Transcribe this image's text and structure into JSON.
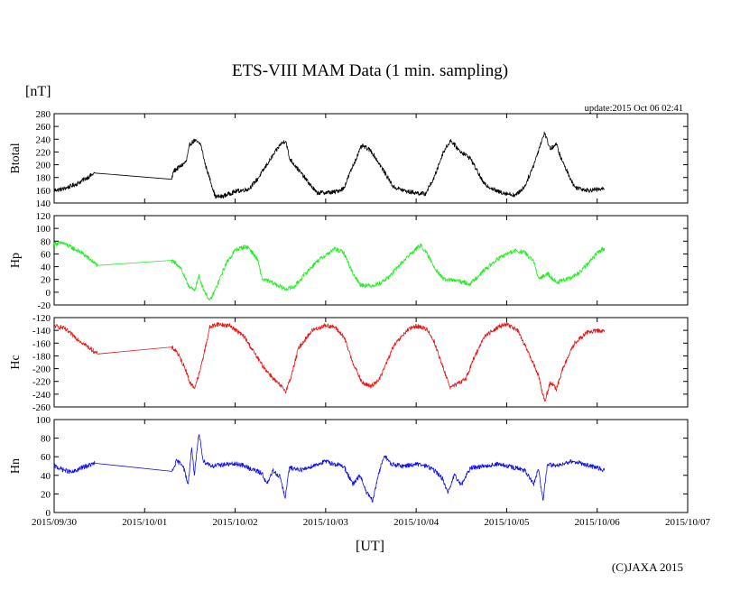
{
  "chart_data": {
    "type": "line",
    "title": "ETS-VIII MAM Data (1 min. sampling)",
    "unit_label": "[nT]",
    "update_text": "update:2015 Oct 06 02:41",
    "xlabel": "[UT]",
    "credit": "(C)JAXA 2015",
    "x_ticks": [
      "2015/09/30",
      "2015/10/01",
      "2015/10/02",
      "2015/10/03",
      "2015/10/04",
      "2015/10/05",
      "2015/10/06",
      "2015/10/07"
    ],
    "x_range_days": [
      0,
      7
    ],
    "data_end_day": 6.08,
    "panels": [
      {
        "name": "Btotal",
        "color": "#000000",
        "ylim": [
          140,
          280
        ],
        "yticks": [
          "280",
          "260",
          "240",
          "220",
          "200",
          "180",
          "160",
          "140"
        ],
        "series": [
          [
            0,
            160
          ],
          [
            0.1,
            162
          ],
          [
            0.25,
            170
          ],
          [
            0.45,
            187
          ],
          [
            1.3,
            178
          ],
          [
            1.32,
            190
          ],
          [
            1.4,
            198
          ],
          [
            1.46,
            205
          ],
          [
            1.5,
            232
          ],
          [
            1.55,
            238
          ],
          [
            1.62,
            232
          ],
          [
            1.67,
            200
          ],
          [
            1.72,
            178
          ],
          [
            1.78,
            150
          ],
          [
            1.85,
            150
          ],
          [
            2.0,
            158
          ],
          [
            2.15,
            162
          ],
          [
            2.25,
            178
          ],
          [
            2.35,
            200
          ],
          [
            2.5,
            232
          ],
          [
            2.56,
            238
          ],
          [
            2.6,
            210
          ],
          [
            2.9,
            156
          ],
          [
            3.1,
            157
          ],
          [
            3.2,
            163
          ],
          [
            3.3,
            198
          ],
          [
            3.4,
            230
          ],
          [
            3.5,
            222
          ],
          [
            3.6,
            200
          ],
          [
            3.75,
            165
          ],
          [
            3.9,
            158
          ],
          [
            4.1,
            154
          ],
          [
            4.2,
            180
          ],
          [
            4.3,
            220
          ],
          [
            4.38,
            238
          ],
          [
            4.48,
            222
          ],
          [
            4.6,
            210
          ],
          [
            4.75,
            170
          ],
          [
            4.9,
            158
          ],
          [
            5.1,
            152
          ],
          [
            5.2,
            166
          ],
          [
            5.3,
            200
          ],
          [
            5.38,
            235
          ],
          [
            5.42,
            250
          ],
          [
            5.48,
            225
          ],
          [
            5.55,
            232
          ],
          [
            5.6,
            210
          ],
          [
            5.75,
            165
          ],
          [
            5.9,
            160
          ],
          [
            6.08,
            162
          ]
        ]
      },
      {
        "name": "Hp",
        "color": "#22ee22",
        "ylim": [
          -20,
          120
        ],
        "yticks": [
          "120",
          "100",
          "80",
          "60",
          "40",
          "20",
          "0",
          "-20"
        ],
        "series": [
          [
            0,
            76
          ],
          [
            0.1,
            77
          ],
          [
            0.3,
            62
          ],
          [
            0.48,
            42
          ],
          [
            1.3,
            48
          ],
          [
            1.35,
            45
          ],
          [
            1.4,
            38
          ],
          [
            1.45,
            20
          ],
          [
            1.5,
            8
          ],
          [
            1.55,
            2
          ],
          [
            1.6,
            25
          ],
          [
            1.65,
            5
          ],
          [
            1.72,
            -14
          ],
          [
            1.8,
            10
          ],
          [
            1.9,
            45
          ],
          [
            2.0,
            66
          ],
          [
            2.1,
            71
          ],
          [
            2.15,
            70
          ],
          [
            2.25,
            50
          ],
          [
            2.3,
            20
          ],
          [
            2.4,
            16
          ],
          [
            2.55,
            5
          ],
          [
            2.65,
            8
          ],
          [
            2.75,
            25
          ],
          [
            2.9,
            48
          ],
          [
            3.05,
            63
          ],
          [
            3.1,
            68
          ],
          [
            3.2,
            62
          ],
          [
            3.3,
            30
          ],
          [
            3.38,
            12
          ],
          [
            3.5,
            10
          ],
          [
            3.6,
            14
          ],
          [
            3.7,
            24
          ],
          [
            3.8,
            40
          ],
          [
            3.9,
            55
          ],
          [
            4.0,
            68
          ],
          [
            4.05,
            74
          ],
          [
            4.12,
            60
          ],
          [
            4.2,
            40
          ],
          [
            4.3,
            20
          ],
          [
            4.45,
            18
          ],
          [
            4.6,
            13
          ],
          [
            4.7,
            28
          ],
          [
            4.8,
            40
          ],
          [
            4.9,
            52
          ],
          [
            5.0,
            60
          ],
          [
            5.1,
            65
          ],
          [
            5.2,
            62
          ],
          [
            5.3,
            48
          ],
          [
            5.35,
            20
          ],
          [
            5.45,
            30
          ],
          [
            5.55,
            15
          ],
          [
            5.7,
            22
          ],
          [
            5.8,
            30
          ],
          [
            5.9,
            45
          ],
          [
            6.0,
            62
          ],
          [
            6.08,
            69
          ]
        ]
      },
      {
        "name": "Hc",
        "color": "#ee1111",
        "ylim": [
          -260,
          -120
        ],
        "yticks": [
          "-120",
          "-140",
          "-160",
          "-180",
          "-200",
          "-220",
          "-240",
          "-260"
        ],
        "series": [
          [
            0,
            -133
          ],
          [
            0.1,
            -136
          ],
          [
            0.3,
            -158
          ],
          [
            0.48,
            -177
          ],
          [
            1.3,
            -167
          ],
          [
            1.35,
            -172
          ],
          [
            1.45,
            -200
          ],
          [
            1.5,
            -222
          ],
          [
            1.55,
            -230
          ],
          [
            1.6,
            -210
          ],
          [
            1.65,
            -180
          ],
          [
            1.72,
            -135
          ],
          [
            1.8,
            -130
          ],
          [
            1.95,
            -133
          ],
          [
            2.1,
            -150
          ],
          [
            2.3,
            -195
          ],
          [
            2.45,
            -220
          ],
          [
            2.56,
            -235
          ],
          [
            2.62,
            -212
          ],
          [
            2.7,
            -168
          ],
          [
            2.85,
            -140
          ],
          [
            3.0,
            -132
          ],
          [
            3.1,
            -135
          ],
          [
            3.2,
            -150
          ],
          [
            3.3,
            -190
          ],
          [
            3.4,
            -222
          ],
          [
            3.5,
            -228
          ],
          [
            3.6,
            -215
          ],
          [
            3.75,
            -165
          ],
          [
            3.9,
            -140
          ],
          [
            4.0,
            -133
          ],
          [
            4.12,
            -138
          ],
          [
            4.2,
            -158
          ],
          [
            4.3,
            -200
          ],
          [
            4.38,
            -230
          ],
          [
            4.48,
            -222
          ],
          [
            4.55,
            -215
          ],
          [
            4.65,
            -180
          ],
          [
            4.75,
            -150
          ],
          [
            4.9,
            -135
          ],
          [
            5.0,
            -130
          ],
          [
            5.12,
            -140
          ],
          [
            5.25,
            -178
          ],
          [
            5.35,
            -210
          ],
          [
            5.42,
            -252
          ],
          [
            5.48,
            -222
          ],
          [
            5.55,
            -232
          ],
          [
            5.62,
            -200
          ],
          [
            5.75,
            -160
          ],
          [
            5.9,
            -142
          ],
          [
            6.08,
            -140
          ]
        ]
      },
      {
        "name": "Hn",
        "color": "#1111ee",
        "ylim": [
          0,
          100
        ],
        "yticks": [
          "100",
          "80",
          "60",
          "40",
          "20",
          "0"
        ],
        "series": [
          [
            0,
            50
          ],
          [
            0.1,
            46
          ],
          [
            0.2,
            43
          ],
          [
            0.3,
            48
          ],
          [
            0.45,
            53
          ],
          [
            1.3,
            43
          ],
          [
            1.35,
            55
          ],
          [
            1.42,
            52
          ],
          [
            1.48,
            30
          ],
          [
            1.52,
            70
          ],
          [
            1.55,
            40
          ],
          [
            1.6,
            85
          ],
          [
            1.65,
            55
          ],
          [
            1.75,
            50
          ],
          [
            1.9,
            52
          ],
          [
            2.05,
            52
          ],
          [
            2.15,
            48
          ],
          [
            2.3,
            42
          ],
          [
            2.35,
            30
          ],
          [
            2.42,
            45
          ],
          [
            2.5,
            38
          ],
          [
            2.55,
            15
          ],
          [
            2.6,
            48
          ],
          [
            2.75,
            46
          ],
          [
            2.85,
            50
          ],
          [
            3.0,
            55
          ],
          [
            3.1,
            52
          ],
          [
            3.2,
            50
          ],
          [
            3.3,
            30
          ],
          [
            3.38,
            40
          ],
          [
            3.45,
            22
          ],
          [
            3.52,
            12
          ],
          [
            3.58,
            40
          ],
          [
            3.65,
            62
          ],
          [
            3.72,
            52
          ],
          [
            3.85,
            50
          ],
          [
            4.0,
            52
          ],
          [
            4.12,
            50
          ],
          [
            4.22,
            44
          ],
          [
            4.3,
            35
          ],
          [
            4.35,
            20
          ],
          [
            4.42,
            40
          ],
          [
            4.5,
            30
          ],
          [
            4.6,
            48
          ],
          [
            4.75,
            50
          ],
          [
            4.9,
            52
          ],
          [
            5.0,
            50
          ],
          [
            5.1,
            48
          ],
          [
            5.2,
            45
          ],
          [
            5.3,
            30
          ],
          [
            5.35,
            48
          ],
          [
            5.4,
            12
          ],
          [
            5.45,
            52
          ],
          [
            5.55,
            50
          ],
          [
            5.65,
            54
          ],
          [
            5.75,
            55
          ],
          [
            5.85,
            52
          ],
          [
            6.0,
            48
          ],
          [
            6.08,
            45
          ]
        ]
      }
    ]
  }
}
